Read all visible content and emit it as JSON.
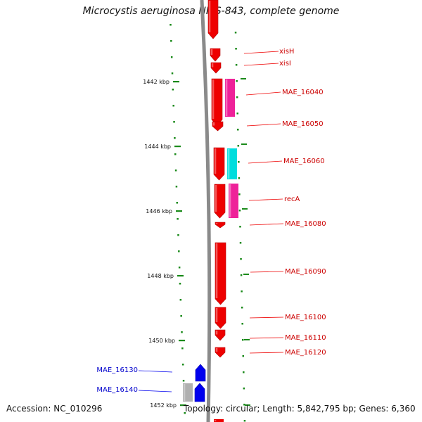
{
  "title": "Microcystis aeruginosa NIES-843, complete genome",
  "footer": {
    "accession": "Accession: NC_010296",
    "topology": "Topology: circular; Length: 5,842,795 bp; Genes: 6,360"
  },
  "colors": {
    "backbone": "#808080",
    "tick": "#1a8a1a",
    "forward_gene": "#ee0000",
    "reverse_gene": "#0000ee",
    "magenta_feature": "#ee2299",
    "cyan_feature": "#00dddd",
    "grey_feature": "#b0b0b0",
    "forward_label": "#cc0000",
    "reverse_label": "#0000cc"
  },
  "axis_labels": [
    "1442 kbp",
    "1444 kbp",
    "1446 kbp",
    "1448 kbp",
    "1450 kbp",
    "1452 kbp"
  ],
  "genes_forward": [
    {
      "label": "xisH"
    },
    {
      "label": "xisI"
    },
    {
      "label": "MAE_16040"
    },
    {
      "label": "MAE_16050"
    },
    {
      "label": "MAE_16060"
    },
    {
      "label": "recA"
    },
    {
      "label": "MAE_16080"
    },
    {
      "label": "MAE_16090"
    },
    {
      "label": "MAE_16100"
    },
    {
      "label": "MAE_16110"
    },
    {
      "label": "MAE_16120"
    }
  ],
  "genes_reverse": [
    {
      "label": "MAE_16130"
    },
    {
      "label": "MAE_16140"
    }
  ]
}
